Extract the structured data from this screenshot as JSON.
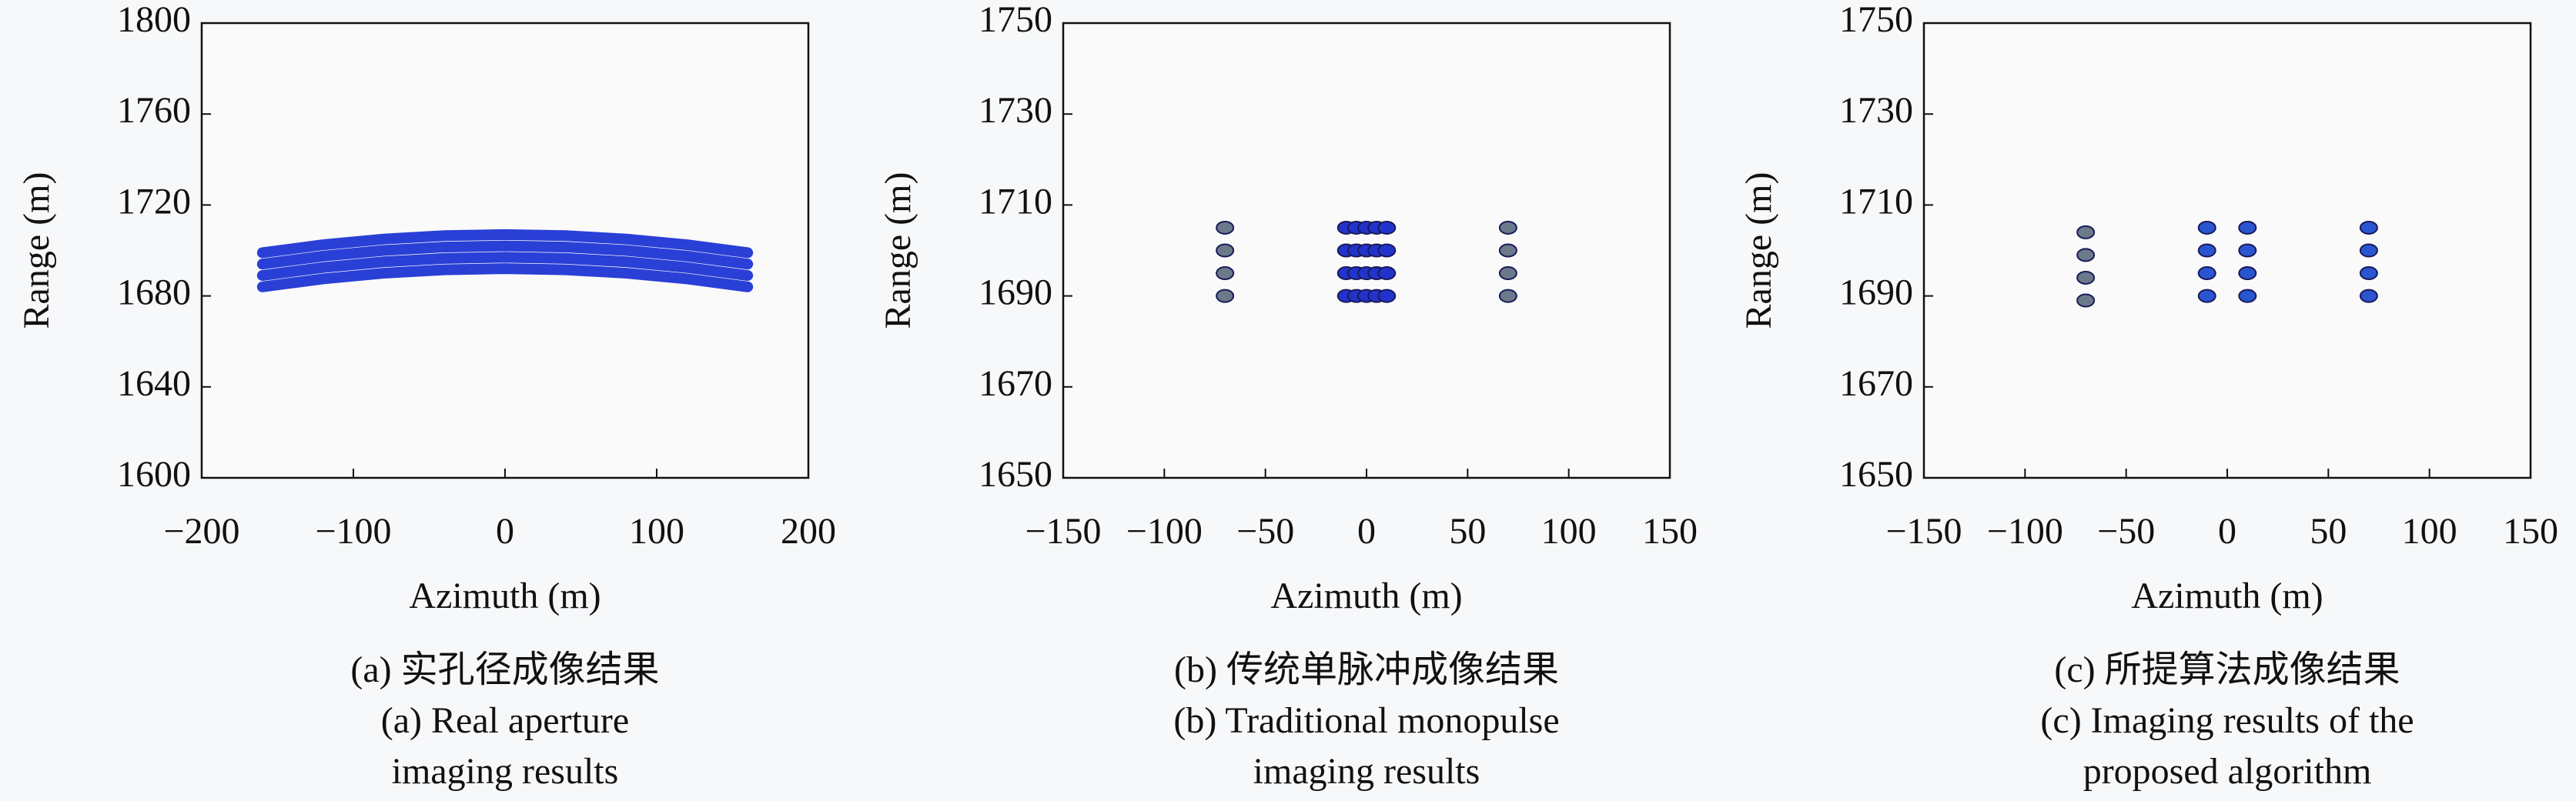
{
  "chart_data": [
    {
      "type": "line",
      "xlabel": "Azimuth (m)",
      "ylabel": "Range (m)",
      "caption": [
        "(a) 实孔径成像结果",
        "(a) Real aperture",
        "imaging results"
      ],
      "xlim": [
        -200,
        200
      ],
      "ylim": [
        1600,
        1800
      ],
      "xticks": [
        {
          "value": -200,
          "label": "−200"
        },
        {
          "value": -100,
          "label": "−100"
        },
        0,
        100,
        200
      ],
      "yticks": [
        1600,
        1640,
        1680,
        1720,
        1760,
        1800
      ],
      "x": [
        -160,
        -120,
        -80,
        -40,
        0,
        40,
        80,
        120,
        160
      ],
      "series": [
        {
          "color": "#2a3fd6",
          "values": [
            1699,
            1702.5,
            1705,
            1706.5,
            1707,
            1706.5,
            1705,
            1702.5,
            1699
          ]
        },
        {
          "color": "#2a3fd6",
          "values": [
            1694,
            1697.5,
            1700,
            1701.5,
            1702,
            1701.5,
            1700,
            1697.5,
            1694
          ]
        },
        {
          "color": "#2a3fd6",
          "values": [
            1689,
            1692.5,
            1695,
            1696.5,
            1697,
            1696.5,
            1695,
            1692.5,
            1689
          ]
        },
        {
          "color": "#2a3fd6",
          "values": [
            1684,
            1687.5,
            1690,
            1691.5,
            1692,
            1691.5,
            1690,
            1687.5,
            1684
          ]
        }
      ]
    },
    {
      "type": "scatter",
      "xlabel": "Azimuth (m)",
      "ylabel": "Range (m)",
      "caption": [
        "(b) 传统单脉冲成像结果",
        "(b) Traditional monopulse",
        "imaging results"
      ],
      "xlim": [
        -150,
        150
      ],
      "ylim": [
        1650,
        1750
      ],
      "xticks": [
        {
          "value": -150,
          "label": "−150"
        },
        {
          "value": -100,
          "label": "−100"
        },
        {
          "value": -50,
          "label": "−50"
        },
        0,
        50,
        100,
        150
      ],
      "yticks": [
        1650,
        1670,
        1690,
        1710,
        1730,
        1750
      ],
      "series": [
        {
          "color": "#6b7a8a",
          "x": [
            -70,
            -70,
            -70,
            -70
          ],
          "values": [
            1690,
            1695,
            1700,
            1705
          ]
        },
        {
          "color": "#2233cc",
          "x": [
            -10,
            -5,
            0,
            5,
            10,
            -10,
            -5,
            0,
            5,
            10,
            -10,
            -5,
            0,
            5,
            10,
            -10,
            -5,
            0,
            5,
            10
          ],
          "values": [
            1690,
            1690,
            1690,
            1690,
            1690,
            1695,
            1695,
            1695,
            1695,
            1695,
            1700,
            1700,
            1700,
            1700,
            1700,
            1705,
            1705,
            1705,
            1705,
            1705
          ]
        },
        {
          "color": "#6b7a8a",
          "x": [
            70,
            70,
            70,
            70
          ],
          "values": [
            1690,
            1695,
            1700,
            1705
          ]
        }
      ]
    },
    {
      "type": "scatter",
      "xlabel": "Azimuth (m)",
      "ylabel": "Range (m)",
      "caption": [
        "(c) 所提算法成像结果",
        "(c) Imaging results of the",
        "proposed algorithm"
      ],
      "xlim": [
        -150,
        150
      ],
      "ylim": [
        1650,
        1750
      ],
      "xticks": [
        {
          "value": -150,
          "label": "−150"
        },
        {
          "value": -100,
          "label": "−100"
        },
        {
          "value": -50,
          "label": "−50"
        },
        0,
        50,
        100,
        150
      ],
      "yticks": [
        1650,
        1670,
        1690,
        1710,
        1730,
        1750
      ],
      "series": [
        {
          "color": "#6b7a8a",
          "x": [
            -70,
            -70,
            -70,
            -70
          ],
          "values": [
            1689,
            1694,
            1699,
            1704
          ]
        },
        {
          "color": "#2a55d0",
          "x": [
            -10,
            -10,
            -10,
            -10,
            10,
            10,
            10,
            10
          ],
          "values": [
            1690,
            1695,
            1700,
            1705,
            1690,
            1695,
            1700,
            1705
          ]
        },
        {
          "color": "#2a55d0",
          "x": [
            70,
            70,
            70,
            70
          ],
          "values": [
            1690,
            1695,
            1700,
            1705
          ]
        }
      ]
    }
  ]
}
